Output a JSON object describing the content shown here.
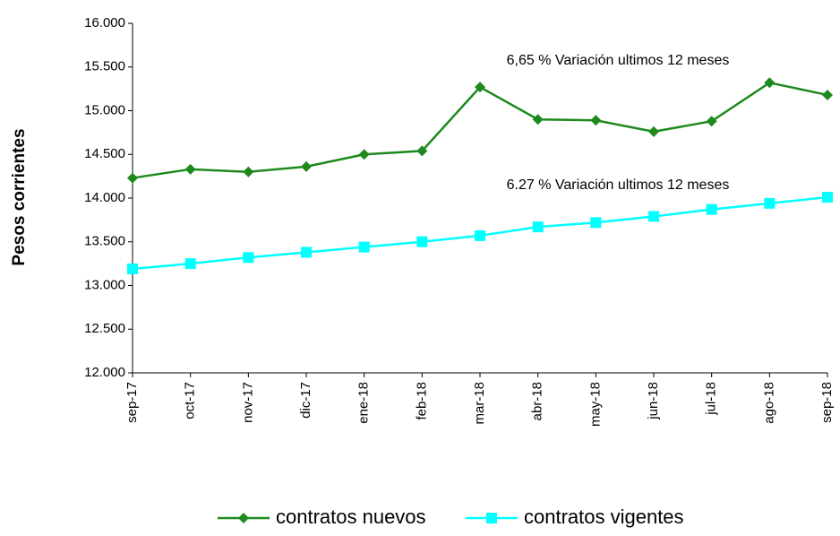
{
  "chart_data": {
    "type": "line",
    "y_label": "Pesos corrientes",
    "annotations": [
      "6,65 % Variación ultimos 12 meses",
      "6.27 % Variación ultimos 12 meses"
    ],
    "categories": [
      "sep-17",
      "oct-17",
      "nov-17",
      "dic-17",
      "ene-18",
      "feb-18",
      "mar-18",
      "abr-18",
      "may-18",
      "jun-18",
      "jul-18",
      "ago-18",
      "sep-18"
    ],
    "series": [
      {
        "name": "contratos nuevos",
        "color": "#1e8a1e",
        "marker": "diamond",
        "values": [
          14230,
          14330,
          14300,
          14360,
          14500,
          14540,
          15270,
          14900,
          14890,
          14760,
          14880,
          15320,
          15180
        ]
      },
      {
        "name": "contratos vigentes",
        "color": "#00ffff",
        "marker": "square",
        "values": [
          13190,
          13250,
          13320,
          13380,
          13440,
          13500,
          13570,
          13670,
          13720,
          13790,
          13870,
          13940,
          14010
        ]
      }
    ],
    "ylim": [
      12000,
      16000
    ],
    "yticks": [
      {
        "value": 12000,
        "label": "12.000"
      },
      {
        "value": 12500,
        "label": "12.500"
      },
      {
        "value": 13000,
        "label": "13.000"
      },
      {
        "value": 13500,
        "label": "13.500"
      },
      {
        "value": 14000,
        "label": "14.000"
      },
      {
        "value": 14500,
        "label": "14.500"
      },
      {
        "value": 15000,
        "label": "15.000"
      },
      {
        "value": 15500,
        "label": "15.500"
      },
      {
        "value": 16000,
        "label": "16.000"
      }
    ],
    "grid": false,
    "legend": "bottom"
  }
}
